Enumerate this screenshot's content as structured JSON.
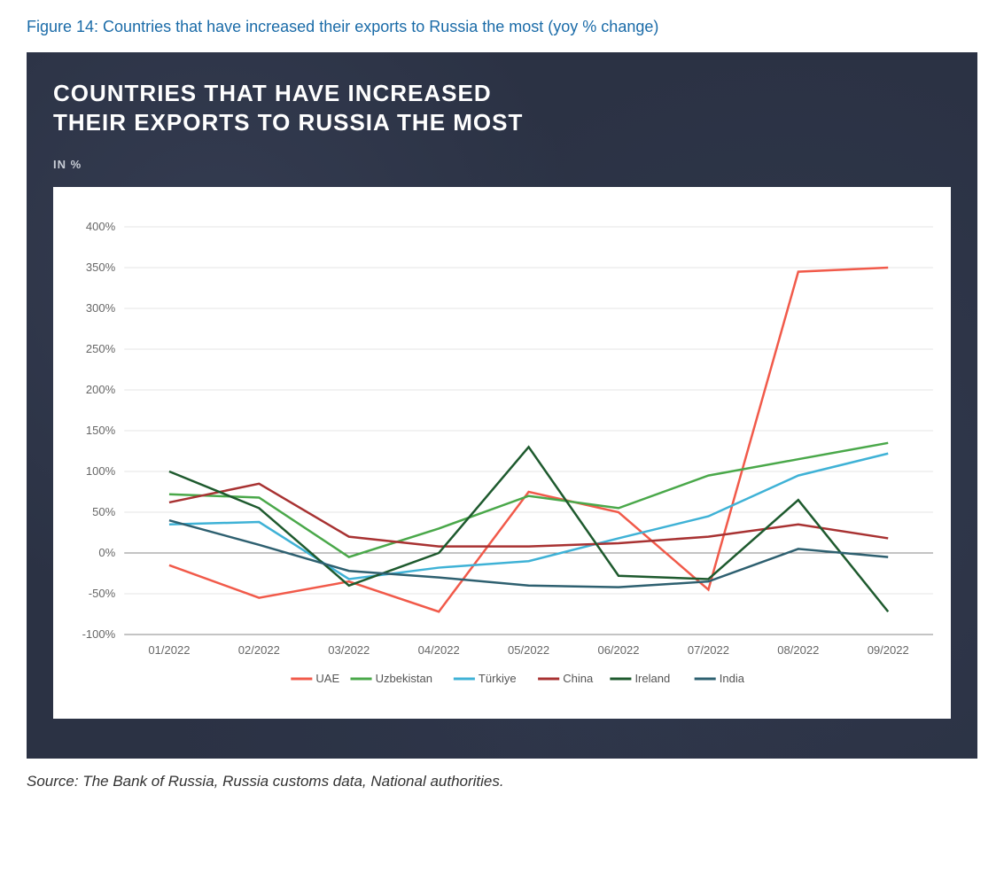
{
  "caption": "Figure 14: Countries that have increased their exports to Russia the most (yoy % change)",
  "title_line1": "COUNTRIES THAT HAVE INCREASED",
  "title_line2": "THEIR EXPORTS TO RUSSIA THE MOST",
  "subtitle": "IN %",
  "source": "Source: The Bank of Russia, Russia customs data, National authorities.",
  "chart": {
    "type": "line",
    "background_panel": "#2b3244",
    "plot_background": "#ffffff",
    "grid_color": "#e6e6e6",
    "axis_color": "#888888",
    "tick_label_color": "#666666",
    "tick_fontsize": 13,
    "title_fontsize": 26,
    "line_width": 2.5,
    "x_labels": [
      "01/2022",
      "02/2022",
      "03/2022",
      "04/2022",
      "05/2022",
      "06/2022",
      "07/2022",
      "08/2022",
      "09/2022"
    ],
    "y_min": -100,
    "y_max": 400,
    "y_ticks": [
      -100,
      -50,
      0,
      50,
      100,
      150,
      200,
      250,
      300,
      350,
      400
    ],
    "y_tick_labels": [
      "-100%",
      "-50%",
      "0%",
      "50%",
      "100%",
      "150%",
      "200%",
      "250%",
      "300%",
      "350%",
      "400%"
    ],
    "series": [
      {
        "name": "UAE",
        "color": "#f15a4a",
        "values": [
          -15,
          -55,
          -35,
          -72,
          75,
          50,
          -45,
          345,
          350
        ]
      },
      {
        "name": "Uzbekistan",
        "color": "#4aa84a",
        "values": [
          72,
          68,
          -5,
          30,
          70,
          55,
          95,
          115,
          135
        ]
      },
      {
        "name": "Türkiye",
        "color": "#3fb2d6",
        "values": [
          35,
          38,
          -32,
          -18,
          -10,
          18,
          45,
          95,
          122
        ]
      },
      {
        "name": "China",
        "color": "#a83232",
        "values": [
          62,
          85,
          20,
          8,
          8,
          12,
          20,
          35,
          18
        ]
      },
      {
        "name": "Ireland",
        "color": "#1e5a2e",
        "values": [
          100,
          55,
          -40,
          0,
          130,
          -28,
          -32,
          65,
          -72
        ]
      },
      {
        "name": "India",
        "color": "#2e6070",
        "values": [
          40,
          10,
          -22,
          -30,
          -40,
          -42,
          -35,
          5,
          -5
        ]
      }
    ],
    "legend_label_color": "#555555"
  }
}
